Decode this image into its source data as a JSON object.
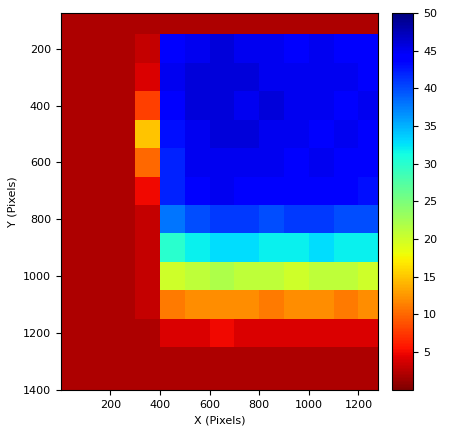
{
  "chart_data": {
    "type": "heatmap",
    "x_label": "X (Pixels)",
    "y_label": "Y (Pixels)",
    "x": [
      50,
      150,
      250,
      350,
      450,
      550,
      650,
      750,
      850,
      950,
      1050,
      1150,
      1250
    ],
    "y": [
      100,
      200,
      300,
      400,
      500,
      600,
      700,
      800,
      900,
      1000,
      1100,
      1200,
      1300,
      1400
    ],
    "values": [
      [
        2,
        2,
        2,
        2,
        2,
        2,
        2,
        2,
        2,
        2,
        2,
        2,
        2
      ],
      [
        2,
        2,
        2,
        3,
        44,
        45,
        46,
        45,
        45,
        44,
        45,
        44,
        44
      ],
      [
        2,
        2,
        2,
        4,
        45,
        46,
        46,
        46,
        45,
        45,
        45,
        45,
        44
      ],
      [
        2,
        2,
        2,
        8,
        44,
        46,
        46,
        45,
        46,
        45,
        45,
        44,
        45
      ],
      [
        2,
        2,
        2,
        15,
        43,
        45,
        46,
        46,
        45,
        45,
        44,
        45,
        44
      ],
      [
        2,
        2,
        2,
        10,
        42,
        45,
        45,
        45,
        45,
        44,
        45,
        44,
        44
      ],
      [
        2,
        2,
        2,
        5,
        42,
        44,
        45,
        44,
        44,
        44,
        44,
        44,
        43
      ],
      [
        2,
        2,
        2,
        3,
        38,
        40,
        41,
        41,
        40,
        41,
        41,
        40,
        40
      ],
      [
        2,
        2,
        2,
        3,
        30,
        32,
        33,
        33,
        32,
        32,
        33,
        32,
        32
      ],
      [
        2,
        2,
        2,
        3,
        20,
        21,
        22,
        21,
        21,
        20,
        21,
        21,
        20
      ],
      [
        2,
        2,
        2,
        3,
        11,
        12,
        12,
        12,
        11,
        12,
        12,
        11,
        12
      ],
      [
        2,
        2,
        2,
        2,
        4,
        4,
        5,
        4,
        4,
        4,
        4,
        4,
        4
      ],
      [
        2,
        2,
        2,
        2,
        2,
        2,
        2,
        2,
        2,
        2,
        2,
        2,
        2
      ],
      [
        2,
        2,
        2,
        2,
        2,
        2,
        2,
        2,
        2,
        2,
        2,
        2,
        2
      ]
    ],
    "xlim": [
      0,
      1280
    ],
    "ylim": [
      1400,
      75
    ],
    "xticks": [
      200,
      400,
      600,
      800,
      1000,
      1200
    ],
    "yticks": [
      200,
      400,
      600,
      800,
      1000,
      1200,
      1400
    ],
    "colorbar_range": [
      0,
      50
    ],
    "colorbar_ticks": [
      5,
      10,
      15,
      20,
      25,
      30,
      35,
      40,
      45,
      50
    ]
  }
}
